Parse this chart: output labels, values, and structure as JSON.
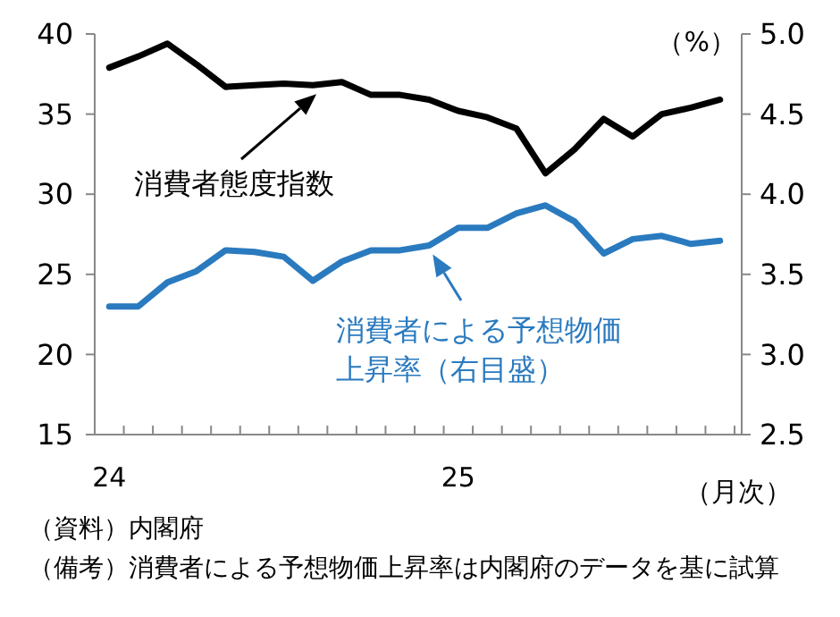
{
  "chart_data": {
    "type": "line",
    "categories": [
      "24",
      null,
      null,
      null,
      null,
      null,
      null,
      null,
      null,
      null,
      null,
      null,
      "25",
      null,
      null,
      null,
      null,
      null,
      null,
      null,
      null,
      null
    ],
    "series": [
      {
        "name": "消費者態度指数",
        "color": "#000000",
        "values": [
          37.9,
          38.6,
          39.4,
          38.1,
          36.7,
          36.8,
          36.9,
          36.8,
          37.0,
          36.2,
          36.2,
          35.9,
          35.2,
          34.8,
          34.1,
          31.3,
          32.8,
          34.7,
          33.6,
          35.0,
          35.4,
          35.9
        ]
      },
      {
        "name": "消費者による予想物価上昇率（右目盛）",
        "color": "#2a7abf",
        "axis": "y2",
        "values": [
          3.3,
          3.3,
          3.45,
          3.52,
          3.65,
          3.64,
          3.61,
          3.46,
          3.58,
          3.65,
          3.65,
          3.68,
          3.79,
          3.79,
          3.88,
          3.93,
          3.83,
          3.63,
          3.72,
          3.74,
          3.69,
          3.71
        ]
      }
    ],
    "ylim": [
      15,
      40
    ],
    "yticks": [
      15,
      20,
      25,
      30,
      35,
      40
    ],
    "y2lim": [
      2.5,
      5.0
    ],
    "y2ticks": [
      {
        "value": 2.5,
        "label": "2.5"
      },
      {
        "value": 3,
        "label": "3.0"
      },
      {
        "value": 3.5,
        "label": "3.5"
      },
      {
        "value": 4,
        "label": "4.0"
      },
      {
        "value": 4.5,
        "label": "4.5"
      },
      {
        "value": 5,
        "label": "5.0"
      }
    ],
    "y2label": "（%）",
    "xlabel": "（月次）",
    "grid": false,
    "legend": "center",
    "marker": "none",
    "line_style": "solid",
    "annotations": [
      "（資料）内閣府",
      "（備考）消費者による予想物価上昇率は内閣府のデータを基に試算"
    ]
  }
}
